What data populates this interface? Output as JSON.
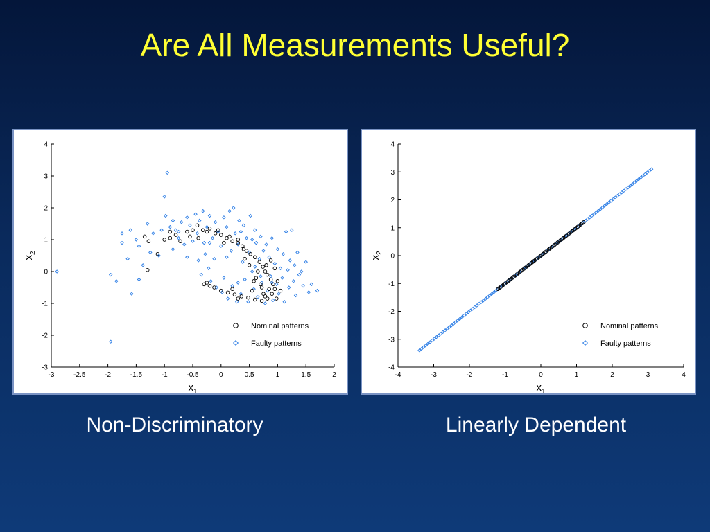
{
  "slide": {
    "title": "Are All Measurements Useful?",
    "captions": [
      "Non-Discriminatory",
      "Linearly Dependent"
    ]
  },
  "colors": {
    "title": "#ffff33",
    "nominal": "#000000",
    "faulty": "#2f7fe6",
    "caption": "#ffffff"
  },
  "chart_data": [
    {
      "type": "scatter",
      "title": "",
      "xlabel": "x1",
      "ylabel": "x2",
      "xlim": [
        -3,
        2
      ],
      "ylim": [
        -3,
        4
      ],
      "xticks": [
        "-3",
        "-2.5",
        "-2",
        "-1.5",
        "-1",
        "-0.5",
        "0",
        "0.5",
        "1",
        "1.5",
        "2"
      ],
      "yticks": [
        "-3",
        "-2",
        "-1",
        "0",
        "1",
        "2",
        "3",
        "4"
      ],
      "legend_position": "bottom-right",
      "series": [
        {
          "name": "Nominal patterns",
          "marker": "circle",
          "points": [
            [
              -1.35,
              1.1
            ],
            [
              -1.28,
              0.95
            ],
            [
              -1.12,
              0.55
            ],
            [
              -1.0,
              1.0
            ],
            [
              -0.9,
              1.05
            ],
            [
              -0.8,
              1.15
            ],
            [
              -0.72,
              0.95
            ],
            [
              -0.6,
              1.25
            ],
            [
              -0.5,
              1.3
            ],
            [
              -0.42,
              1.45
            ],
            [
              -0.32,
              1.3
            ],
            [
              -0.2,
              1.35
            ],
            [
              -0.1,
              1.2
            ],
            [
              0.0,
              1.15
            ],
            [
              0.1,
              1.05
            ],
            [
              0.2,
              0.95
            ],
            [
              0.3,
              0.9
            ],
            [
              0.38,
              0.8
            ],
            [
              0.45,
              0.65
            ],
            [
              0.52,
              0.55
            ],
            [
              0.6,
              0.45
            ],
            [
              0.68,
              0.3
            ],
            [
              0.74,
              0.15
            ],
            [
              0.78,
              0.0
            ],
            [
              0.82,
              -0.1
            ],
            [
              0.88,
              -0.25
            ],
            [
              0.92,
              -0.4
            ],
            [
              0.95,
              -0.55
            ],
            [
              0.9,
              -0.7
            ],
            [
              0.82,
              -0.85
            ],
            [
              0.72,
              -0.92
            ],
            [
              0.6,
              -0.88
            ],
            [
              0.48,
              -0.82
            ],
            [
              0.36,
              -0.78
            ],
            [
              0.24,
              -0.72
            ],
            [
              0.12,
              -0.66
            ],
            [
              0.0,
              -0.6
            ],
            [
              -0.12,
              -0.5
            ],
            [
              -0.25,
              -0.35
            ],
            [
              -0.3,
              -0.4
            ],
            [
              -1.3,
              0.05
            ],
            [
              0.7,
              -0.4
            ],
            [
              0.8,
              0.2
            ],
            [
              0.65,
              0.0
            ],
            [
              0.55,
              -0.6
            ],
            [
              0.85,
              -0.55
            ],
            [
              1.0,
              -0.3
            ],
            [
              0.95,
              0.1
            ],
            [
              0.4,
              0.7
            ],
            [
              0.3,
              1.0
            ],
            [
              0.15,
              1.1
            ],
            [
              -0.05,
              1.3
            ],
            [
              -0.25,
              1.25
            ],
            [
              -0.55,
              1.1
            ],
            [
              -0.9,
              1.25
            ],
            [
              1.05,
              -0.6
            ],
            [
              0.75,
              -0.7
            ],
            [
              0.2,
              -0.55
            ],
            [
              -0.2,
              -0.45
            ],
            [
              0.5,
              0.2
            ],
            [
              0.62,
              -0.2
            ],
            [
              0.72,
              -0.5
            ],
            [
              0.88,
              0.35
            ],
            [
              0.42,
              0.4
            ],
            [
              0.58,
              -0.3
            ],
            [
              0.78,
              -0.78
            ],
            [
              0.98,
              -0.85
            ],
            [
              0.3,
              -0.85
            ],
            [
              -0.4,
              1.05
            ],
            [
              0.05,
              0.9
            ]
          ]
        },
        {
          "name": "Faulty patterns",
          "marker": "diamond",
          "points": [
            [
              -2.9,
              0.0
            ],
            [
              -1.95,
              -2.2
            ],
            [
              -1.95,
              -0.1
            ],
            [
              -1.85,
              -0.3
            ],
            [
              -1.75,
              0.9
            ],
            [
              -1.75,
              1.2
            ],
            [
              -1.65,
              0.4
            ],
            [
              -1.6,
              1.3
            ],
            [
              -1.58,
              -0.7
            ],
            [
              -1.45,
              0.8
            ],
            [
              -1.45,
              -0.25
            ],
            [
              -1.38,
              0.2
            ],
            [
              -1.3,
              1.5
            ],
            [
              -1.25,
              0.6
            ],
            [
              -1.2,
              1.2
            ],
            [
              -1.1,
              0.5
            ],
            [
              -1.05,
              1.3
            ],
            [
              -1.0,
              2.35
            ],
            [
              -0.98,
              1.75
            ],
            [
              -0.95,
              3.1
            ],
            [
              -0.9,
              1.4
            ],
            [
              -0.85,
              0.7
            ],
            [
              -0.85,
              1.6
            ],
            [
              -0.8,
              1.3
            ],
            [
              -0.75,
              1.05
            ],
            [
              -0.7,
              1.55
            ],
            [
              -0.65,
              0.85
            ],
            [
              -0.6,
              1.7
            ],
            [
              -0.55,
              1.45
            ],
            [
              -0.5,
              0.95
            ],
            [
              -0.45,
              1.8
            ],
            [
              -0.42,
              1.2
            ],
            [
              -0.4,
              0.35
            ],
            [
              -0.38,
              1.6
            ],
            [
              -0.35,
              -0.1
            ],
            [
              -0.32,
              1.9
            ],
            [
              -0.28,
              0.55
            ],
            [
              -0.25,
              1.4
            ],
            [
              -0.22,
              0.1
            ],
            [
              -0.2,
              1.75
            ],
            [
              -0.18,
              -0.3
            ],
            [
              -0.15,
              1.05
            ],
            [
              -0.12,
              0.4
            ],
            [
              -0.1,
              1.55
            ],
            [
              -0.08,
              -0.5
            ],
            [
              -0.05,
              1.25
            ],
            [
              0.0,
              0.8
            ],
            [
              0.02,
              -0.65
            ],
            [
              0.05,
              1.7
            ],
            [
              0.1,
              0.45
            ],
            [
              0.12,
              -0.85
            ],
            [
              0.15,
              1.9
            ],
            [
              0.18,
              0.65
            ],
            [
              0.2,
              -0.45
            ],
            [
              0.22,
              2.0
            ],
            [
              0.25,
              1.2
            ],
            [
              0.28,
              -0.95
            ],
            [
              0.3,
              0.85
            ],
            [
              0.32,
              1.6
            ],
            [
              0.35,
              -0.7
            ],
            [
              0.38,
              0.3
            ],
            [
              0.4,
              1.45
            ],
            [
              0.42,
              -0.25
            ],
            [
              0.45,
              1.05
            ],
            [
              0.48,
              -0.95
            ],
            [
              0.5,
              0.6
            ],
            [
              0.52,
              1.75
            ],
            [
              0.55,
              0.0
            ],
            [
              0.58,
              -0.55
            ],
            [
              0.6,
              1.3
            ],
            [
              0.62,
              0.9
            ],
            [
              0.65,
              -0.8
            ],
            [
              0.68,
              0.4
            ],
            [
              0.7,
              1.1
            ],
            [
              0.72,
              -0.35
            ],
            [
              0.75,
              0.65
            ],
            [
              0.78,
              -1.0
            ],
            [
              0.8,
              0.85
            ],
            [
              0.82,
              -0.6
            ],
            [
              0.85,
              0.45
            ],
            [
              0.88,
              -0.15
            ],
            [
              0.9,
              1.05
            ],
            [
              0.92,
              -0.9
            ],
            [
              0.95,
              0.25
            ],
            [
              0.98,
              -0.4
            ],
            [
              1.0,
              0.7
            ],
            [
              1.02,
              -0.7
            ],
            [
              1.05,
              0.1
            ],
            [
              1.08,
              -0.2
            ],
            [
              1.1,
              0.55
            ],
            [
              1.12,
              -0.95
            ],
            [
              1.15,
              1.25
            ],
            [
              1.18,
              0.05
            ],
            [
              1.2,
              -0.5
            ],
            [
              1.22,
              0.35
            ],
            [
              1.25,
              1.3
            ],
            [
              1.28,
              -0.3
            ],
            [
              1.3,
              0.2
            ],
            [
              1.32,
              -0.75
            ],
            [
              1.35,
              0.6
            ],
            [
              1.38,
              -0.1
            ],
            [
              1.42,
              0.0
            ],
            [
              1.45,
              -0.45
            ],
            [
              1.5,
              0.3
            ],
            [
              1.55,
              -0.65
            ],
            [
              1.6,
              -0.4
            ],
            [
              1.7,
              -0.6
            ],
            [
              0.9,
              -0.35
            ],
            [
              0.7,
              -0.15
            ],
            [
              0.6,
              0.15
            ],
            [
              -0.6,
              0.45
            ],
            [
              -0.75,
              1.25
            ],
            [
              -1.5,
              1.0
            ],
            [
              -0.2,
              0.9
            ],
            [
              0.1,
              1.4
            ],
            [
              0.35,
              1.25
            ],
            [
              0.55,
              1.0
            ],
            [
              0.3,
              -0.35
            ],
            [
              0.05,
              -0.2
            ],
            [
              -0.3,
              0.9
            ]
          ]
        }
      ]
    },
    {
      "type": "scatter",
      "title": "",
      "xlabel": "x1",
      "ylabel": "x2",
      "xlim": [
        -4,
        4
      ],
      "ylim": [
        -4,
        4
      ],
      "xticks": [
        "-4",
        "-3",
        "-2",
        "-1",
        "0",
        "1",
        "2",
        "3",
        "4"
      ],
      "yticks": [
        "-4",
        "-3",
        "-2",
        "-1",
        "0",
        "1",
        "2",
        "3",
        "4"
      ],
      "legend_position": "bottom-right",
      "series": [
        {
          "name": "Nominal patterns",
          "marker": "circle",
          "line_segment": {
            "from": -1.2,
            "to": 1.2,
            "count": 60
          }
        },
        {
          "name": "Faulty patterns",
          "marker": "diamond",
          "line_segment": {
            "from": -3.4,
            "to": 3.1,
            "count": 110
          }
        }
      ]
    }
  ]
}
